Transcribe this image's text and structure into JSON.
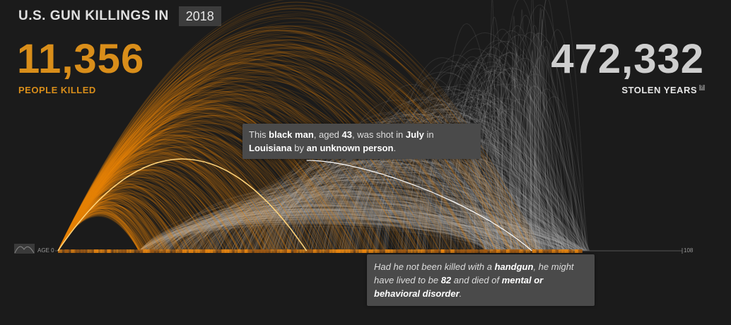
{
  "header": {
    "title": "U.S. GUN KILLINGS IN",
    "year": "2018"
  },
  "stats": {
    "killed_value": "11,356",
    "killed_label": "PEOPLE KILLED",
    "stolen_value": "472,332",
    "stolen_label": "STOLEN YEARS",
    "help_badge": "?"
  },
  "tooltip_victim": {
    "p1": "This ",
    "race_gender": "black man",
    "p2": ", aged ",
    "age": "43",
    "p3": ", was shot in ",
    "month": "July",
    "p4": " in",
    "state": "Louisiana",
    "p5": " by ",
    "shooter": "an unknown person",
    "p6": "."
  },
  "tooltip_projection": {
    "p1": "Had he not been killed with a ",
    "weapon": "handgun",
    "p2": ", he might have lived to be ",
    "projected_age": "82",
    "p3": " and died of ",
    "cause": "mental or behavioral disorder",
    "p4": "."
  },
  "chart_data": {
    "type": "arc",
    "axis": {
      "min": 0,
      "max": 108,
      "min_label": "AGE 0",
      "max_label": "108"
    },
    "colors": {
      "actual": "#e8850f",
      "projected": "#bdbdbd",
      "highlight": "#ffffff"
    },
    "highlight": {
      "age_at_death": 43,
      "projected_age": 82
    }
  }
}
